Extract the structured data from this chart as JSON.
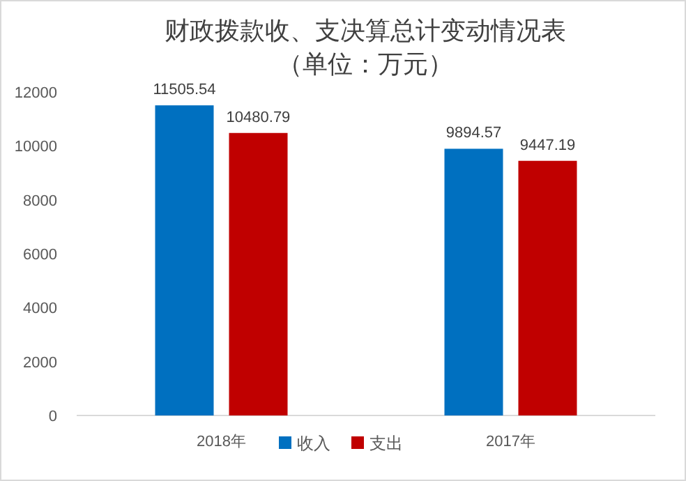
{
  "chart_data": {
    "type": "bar",
    "title": "财政拨款收、支决算总计变动情况表",
    "subtitle": "（单位：万元）",
    "categories": [
      "2018年",
      "2017年"
    ],
    "series": [
      {
        "name": "收入",
        "color": "#0070c0",
        "values": [
          11505.54,
          9894.57
        ]
      },
      {
        "name": "支出",
        "color": "#c00000",
        "values": [
          10480.79,
          9447.19
        ]
      }
    ],
    "ylim": [
      0,
      12000
    ],
    "yticks": [
      0,
      2000,
      4000,
      6000,
      8000,
      10000,
      12000
    ],
    "data_labels": true,
    "legend": "bottom",
    "grid": false
  }
}
